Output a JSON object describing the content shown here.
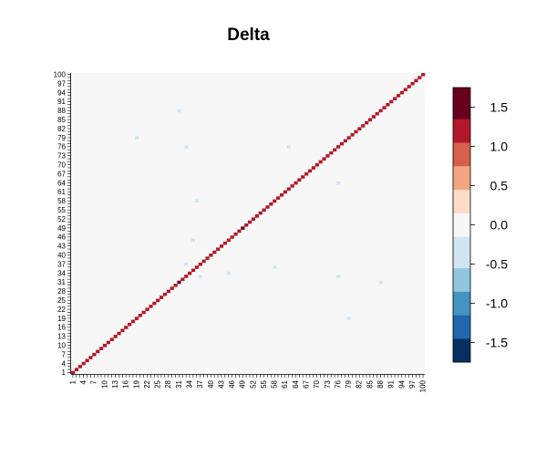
{
  "chart_data": {
    "type": "heatmap",
    "title": "Delta",
    "n": 100,
    "x_tick_labels": [
      "1",
      "4",
      "7",
      "10",
      "13",
      "16",
      "19",
      "22",
      "25",
      "28",
      "31",
      "34",
      "37",
      "40",
      "43",
      "46",
      "49",
      "52",
      "55",
      "58",
      "61",
      "64",
      "67",
      "70",
      "73",
      "76",
      "79",
      "82",
      "85",
      "88",
      "91",
      "94",
      "97",
      "100"
    ],
    "y_tick_labels": [
      "1",
      "4",
      "7",
      "10",
      "13",
      "16",
      "19",
      "22",
      "25",
      "28",
      "31",
      "34",
      "37",
      "40",
      "43",
      "46",
      "49",
      "52",
      "55",
      "58",
      "61",
      "64",
      "67",
      "70",
      "73",
      "76",
      "79",
      "82",
      "85",
      "88",
      "91",
      "94",
      "97",
      "100"
    ],
    "diagonal_value": 1.25,
    "off_diagonal_value": 0,
    "highlight_cells": [
      {
        "row": 49,
        "col": 49,
        "value": 1.75
      },
      {
        "row": 31,
        "col": 31,
        "value": 1.75
      }
    ],
    "sparse_cells": [
      {
        "row": 88,
        "col": 31,
        "value": -0.2
      },
      {
        "row": 79,
        "col": 19,
        "value": -0.2
      },
      {
        "row": 76,
        "col": 33,
        "value": -0.2
      },
      {
        "row": 76,
        "col": 62,
        "value": -0.2
      },
      {
        "row": 64,
        "col": 76,
        "value": -0.35
      },
      {
        "row": 58,
        "col": 36,
        "value": -0.2
      },
      {
        "row": 45,
        "col": 35,
        "value": -0.35
      },
      {
        "row": 37,
        "col": 33,
        "value": -0.2
      },
      {
        "row": 36,
        "col": 58,
        "value": -0.2
      },
      {
        "row": 34,
        "col": 45,
        "value": -0.2
      },
      {
        "row": 33,
        "col": 37,
        "value": -0.35
      },
      {
        "row": 33,
        "col": 76,
        "value": -0.35
      },
      {
        "row": 31,
        "col": 88,
        "value": -0.2
      },
      {
        "row": 19,
        "col": 79,
        "value": -0.2
      }
    ],
    "color_scale": {
      "breaks": [
        -1.75,
        -1.5,
        -1.25,
        -1.0,
        -0.75,
        -0.5,
        -0.25,
        0.0,
        0.25,
        0.5,
        0.75,
        1.0,
        1.25,
        1.5,
        1.75
      ],
      "colors": [
        "#053061",
        "#2166ac",
        "#4393c3",
        "#92c5de",
        "#d1e5f0",
        "#f7f7f7",
        "#fddbc7",
        "#f4a582",
        "#d6604d",
        "#b2182b",
        "#67001f"
      ],
      "band_edges": [
        -1.75,
        -1.45,
        -1.15,
        -0.85,
        -0.55,
        -0.15,
        0.15,
        0.45,
        0.75,
        1.05,
        1.35,
        1.75
      ]
    },
    "legend_tick_labels": [
      "-1.5",
      "-1.0",
      "-0.5",
      "0.0",
      "0.5",
      "1.0",
      "1.5"
    ],
    "legend_tick_values": [
      -1.5,
      -1.0,
      -0.5,
      0.0,
      0.5,
      1.0,
      1.5
    ],
    "legend_range": [
      -1.75,
      1.75
    ],
    "legend_placement": "right",
    "grid": false
  }
}
